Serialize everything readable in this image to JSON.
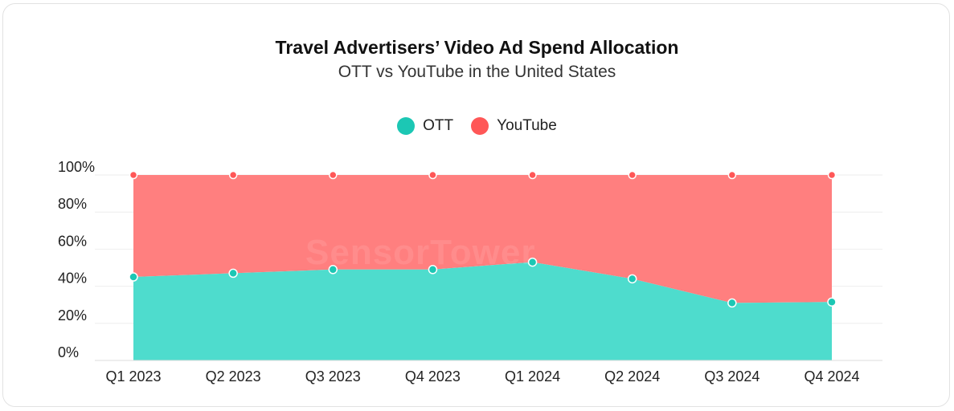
{
  "title": "Travel Advertisers’ Video Ad Spend Allocation",
  "subtitle": "OTT vs YouTube in the United States",
  "watermark": "SensorTower",
  "colors": {
    "ott": "#4edccd",
    "ott_dot": "#1cc7b4",
    "youtube": "#ff7f7f",
    "youtube_dot": "#ff5757",
    "grid": "#eeeeee",
    "text": "#222222"
  },
  "chart_data": {
    "type": "area",
    "stacked": true,
    "title": "Travel Advertisers’ Video Ad Spend Allocation",
    "subtitle": "OTT vs YouTube in the United States",
    "categories": [
      "Q1 2023",
      "Q2 2023",
      "Q3 2023",
      "Q4 2023",
      "Q1 2024",
      "Q2 2024",
      "Q3 2024",
      "Q4 2024"
    ],
    "series": [
      {
        "name": "OTT",
        "values": [
          45,
          47,
          49,
          49,
          53,
          44,
          31,
          31.5
        ]
      },
      {
        "name": "YouTube",
        "values": [
          55,
          53,
          51,
          51,
          47,
          56,
          69,
          68.5
        ]
      }
    ],
    "yticks": [
      "0%",
      "20%",
      "40%",
      "60%",
      "80%",
      "100%"
    ],
    "ylim": [
      0,
      100
    ],
    "xlabel": "",
    "ylabel": "",
    "grid": true,
    "legend_position": "top-center"
  }
}
